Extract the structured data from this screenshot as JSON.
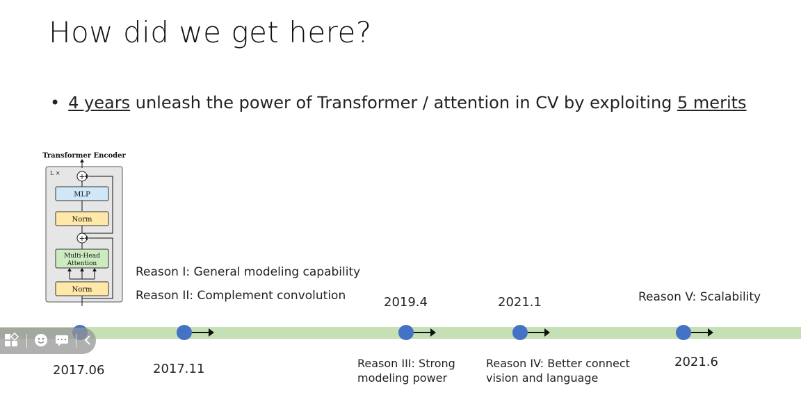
{
  "slide": {
    "title": "How did we get here?",
    "bullet": {
      "marker": "•",
      "prefix_underlined": "4 years",
      "middle": " unleash the power of Transformer / attention in CV by exploiting ",
      "suffix_underlined": "5 merits"
    }
  },
  "diagram": {
    "title": "Transformer Encoder",
    "repeat_label": "L ×",
    "blocks": {
      "mlp": "MLP",
      "norm_top": "Norm",
      "mha_line1": "Multi-Head",
      "mha_line2": "Attention",
      "norm_bottom": "Norm"
    },
    "add_symbol": "+",
    "colors": {
      "mlp": "#cfe7f7",
      "norm": "#ffe8a8",
      "mha": "#ccebc0",
      "frame": "#e6e6e6"
    }
  },
  "reasons": {
    "r1": "Reason I: General modeling capability",
    "r2": "Reason II: Complement convolution",
    "r3_line1": "Reason III: Strong",
    "r3_line2": "modeling power",
    "r4_line1": "Reason IV: Better connect",
    "r4_line2": "vision and language",
    "r5": "Reason V: Scalability"
  },
  "dates": {
    "d1": "2017.06",
    "d2": "2017.11",
    "d3": "2019.4",
    "d4": "2021.1",
    "d5": "2021.6"
  },
  "colors": {
    "timeline": "#c5e0b4",
    "node": "#4472c4"
  },
  "toolbar_icons": [
    "grid-icon",
    "emoji-icon",
    "chat-icon",
    "back-icon"
  ]
}
